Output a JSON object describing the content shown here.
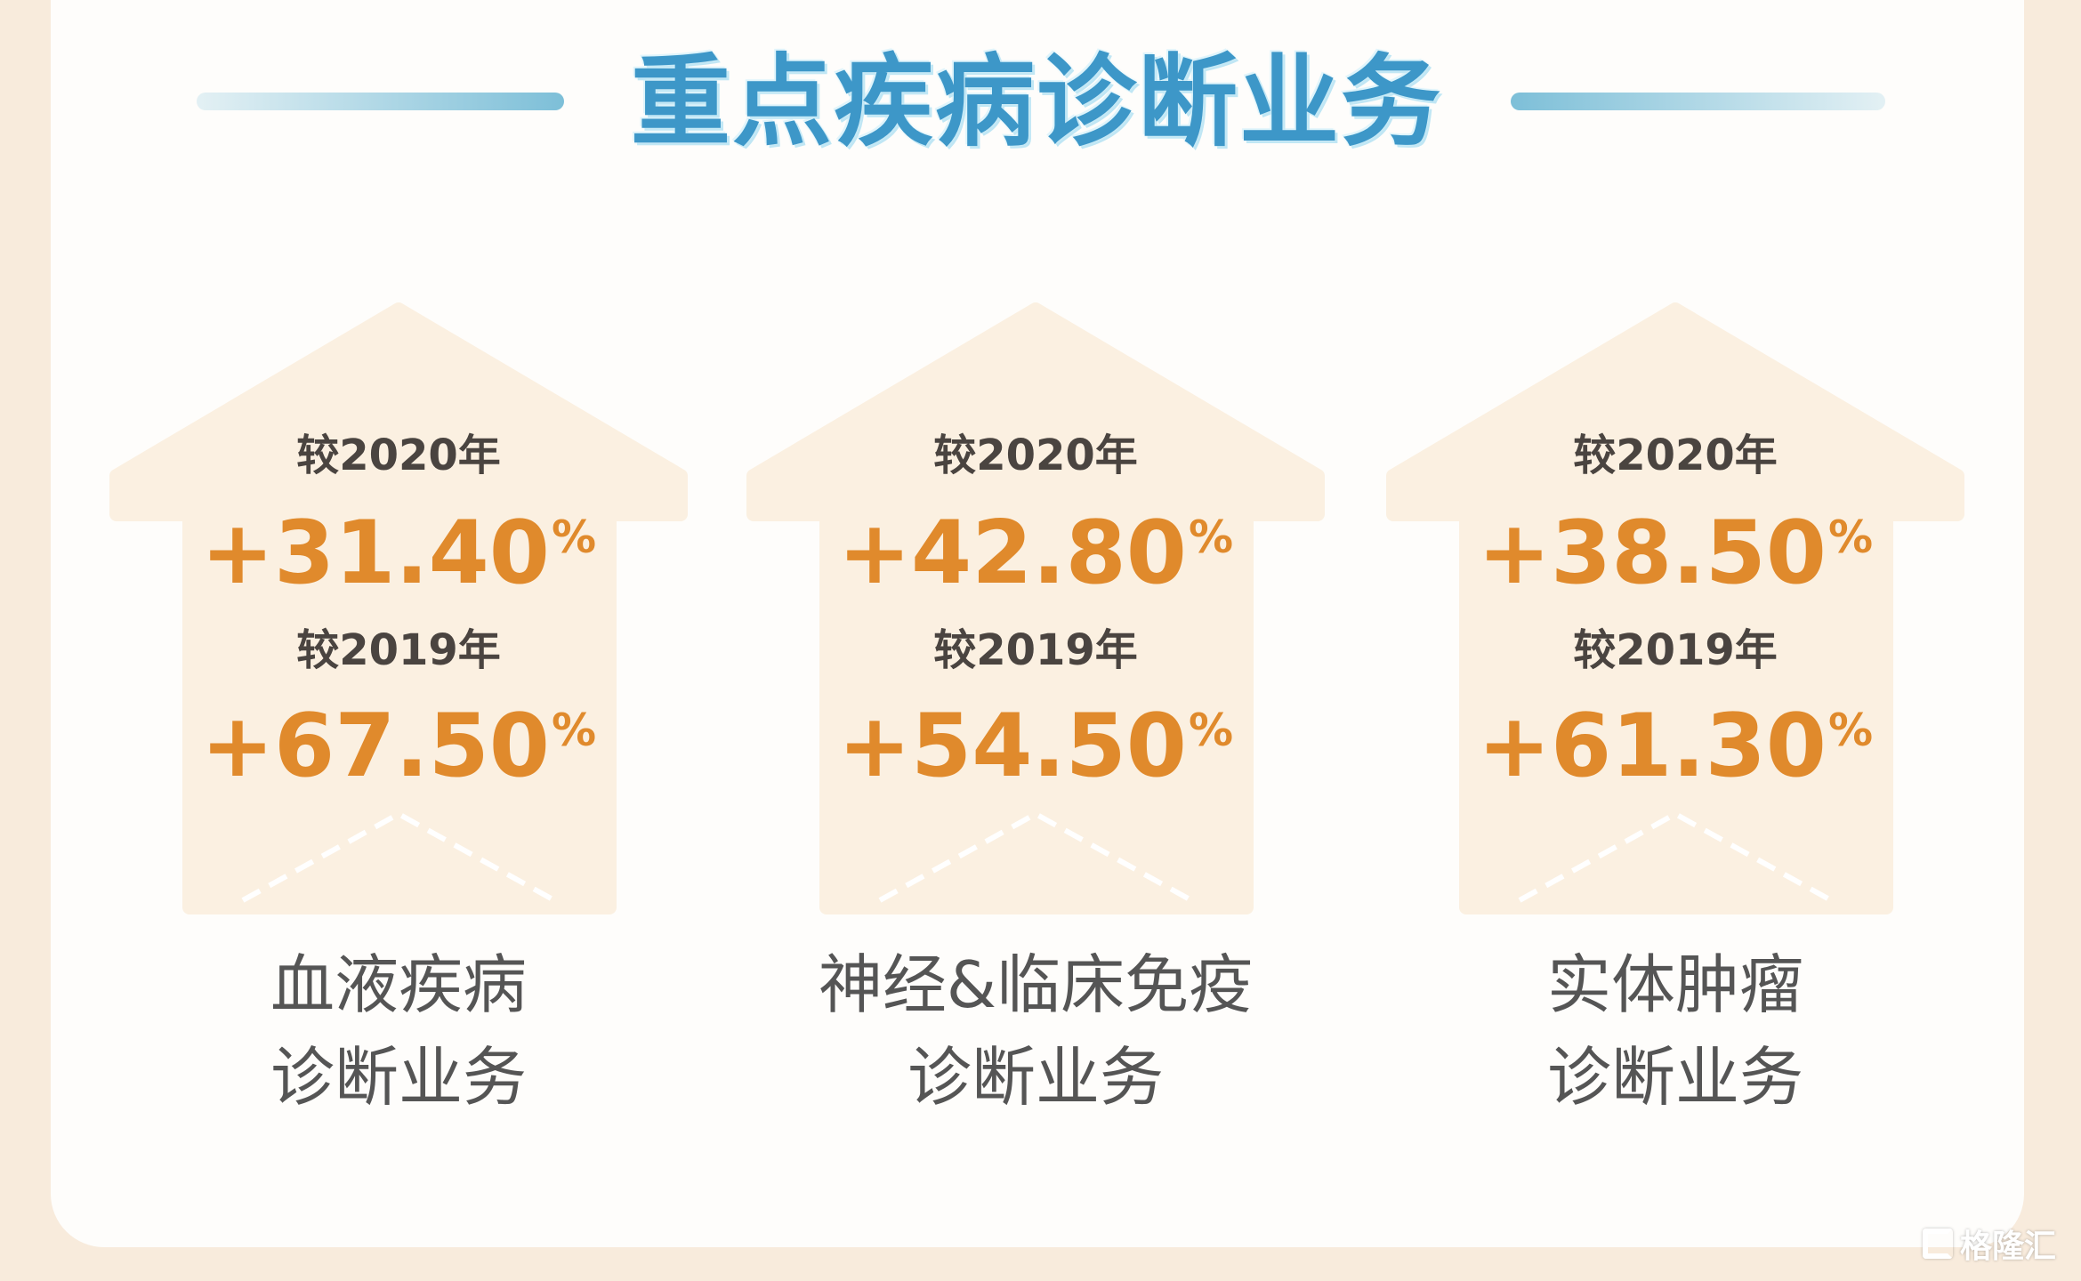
{
  "title": "重点疾病诊断业务",
  "colors": {
    "title": "#3d97c8",
    "number": "#e08a2c",
    "house": "#fbf0e1",
    "background": "#f8ebdc"
  },
  "items": [
    {
      "cmp1": "较2020年",
      "val1": "+31.40",
      "cmp2": "较2019年",
      "val2": "+67.50",
      "pct": "%",
      "label1": "血液疾病",
      "label2": "诊断业务"
    },
    {
      "cmp1": "较2020年",
      "val1": "+42.80",
      "cmp2": "较2019年",
      "val2": "+54.50",
      "pct": "%",
      "label1": "神经&临床免疫",
      "label2": "诊断业务"
    },
    {
      "cmp1": "较2020年",
      "val1": "+38.50",
      "cmp2": "较2019年",
      "val2": "+61.30",
      "pct": "%",
      "label1": "实体肿瘤",
      "label2": "诊断业务"
    }
  ],
  "watermark": "格隆汇"
}
